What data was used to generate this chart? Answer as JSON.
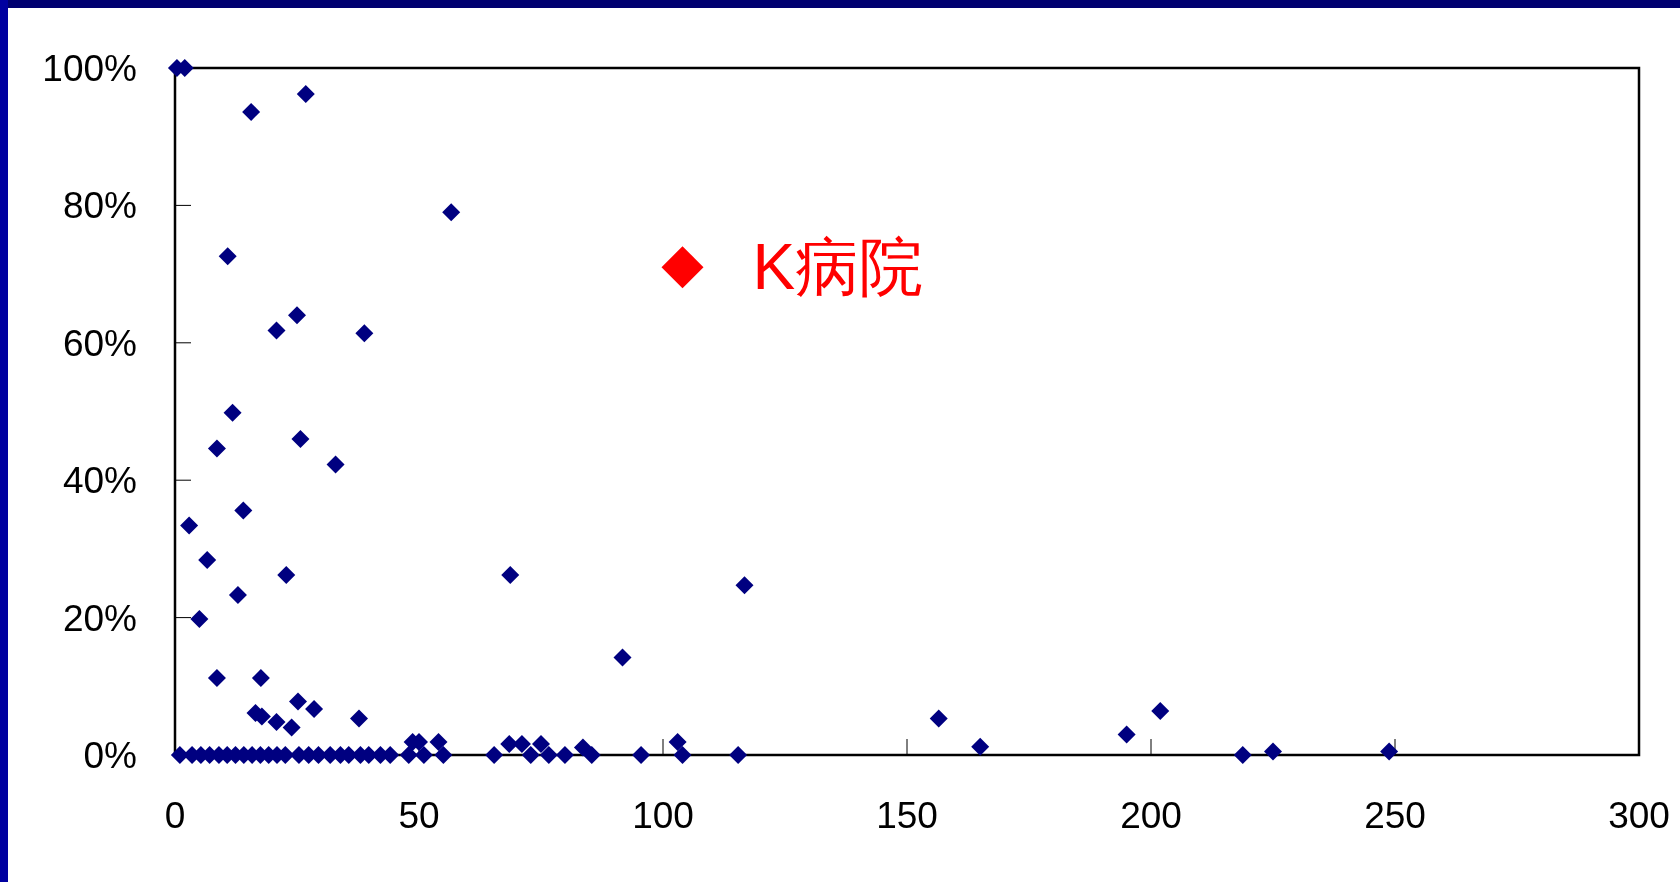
{
  "chart_data": {
    "type": "scatter",
    "marker": "diamond",
    "grid": false,
    "xlim": [
      0,
      300
    ],
    "xticks": [
      0,
      50,
      100,
      150,
      200,
      250,
      300
    ],
    "ylim": [
      0,
      100
    ],
    "yticks": [
      {
        "value": 0,
        "label": "0%"
      },
      {
        "value": 20,
        "label": "20%"
      },
      {
        "value": 40,
        "label": "40%"
      },
      {
        "value": 60,
        "label": "60%"
      },
      {
        "value": 80,
        "label": "80%"
      },
      {
        "value": 100,
        "label": "100%"
      }
    ],
    "series": [
      {
        "color": "#000080",
        "x": [
          0.4,
          2,
          15.6,
          26.8,
          56.6,
          10.8,
          25,
          20.8,
          38.8,
          11.8,
          8.6,
          25.7,
          32.9,
          14,
          2.9,
          6.6,
          22.8,
          68.7,
          116.7,
          12.9,
          5,
          91.7,
          8.6,
          17.6,
          25.2,
          28.5,
          16.5,
          17.8,
          37.7,
          20.8,
          23.9,
          156.5,
          201.9,
          195,
          165,
          248.8,
          225,
          218.8,
          104,
          103,
          95.5,
          115.4,
          83.6,
          85.4,
          79.9,
          75,
          76.6,
          72.9,
          71.1,
          68.5,
          65.4,
          54,
          55,
          48.7,
          50,
          51,
          1,
          3.5,
          5.3,
          7.1,
          9,
          10.7,
          12.4,
          14.1,
          15.8,
          17.5,
          19.2,
          20.9,
          22.6,
          25.4,
          27.4,
          29.4,
          31.8,
          33.9,
          35.6,
          38,
          39.7,
          42.1,
          44.1,
          47.9
        ],
        "values": [
          100,
          100,
          93.6,
          96.2,
          79,
          72.6,
          64,
          61.8,
          61.4,
          49.8,
          44.6,
          46,
          42.3,
          35.6,
          33.4,
          28.4,
          26.2,
          26.2,
          24.7,
          23.3,
          19.8,
          14.2,
          11.2,
          11.2,
          7.8,
          6.7,
          6.1,
          5.6,
          5.3,
          4.8,
          4,
          5.3,
          6.4,
          3,
          1.2,
          0.5,
          0.5,
          0,
          0,
          1.9,
          0,
          0,
          1.1,
          0,
          0,
          1.6,
          0,
          0,
          1.6,
          1.6,
          0,
          1.9,
          0,
          1.9,
          1.9,
          0,
          0,
          0,
          0,
          0,
          0,
          0,
          0,
          0,
          0,
          0,
          0,
          0,
          0,
          0,
          0,
          0,
          0,
          0,
          0,
          0,
          0,
          0,
          0,
          0
        ]
      },
      {
        "name": "K病院",
        "color": "#ff0000",
        "x": [
          104
        ],
        "values": [
          71
        ]
      }
    ]
  }
}
